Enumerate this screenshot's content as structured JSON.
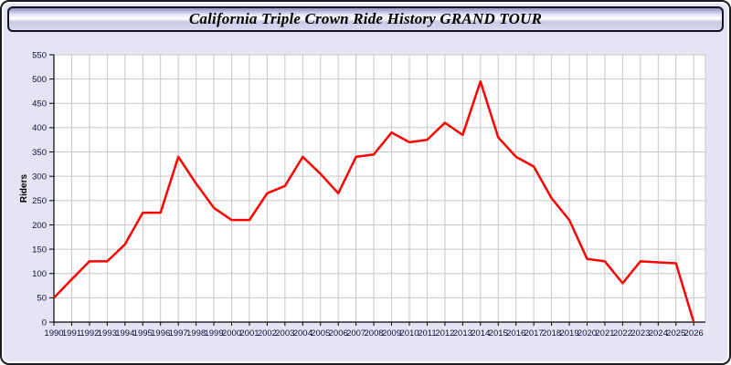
{
  "window": {
    "title": "California Triple Crown Ride History GRAND TOUR"
  },
  "colors": {
    "window_background": "#e4e4f4",
    "plot_background": "#ffffff",
    "grid": "#c6c6c6",
    "axis": "#000000",
    "tick_label": "#10103a",
    "line": "#ff0000"
  },
  "chart_data": {
    "type": "line",
    "title": "California Triple Crown Ride History GRAND TOUR",
    "xlabel": "",
    "ylabel": "Riders",
    "ylim": [
      0,
      550
    ],
    "ytick_step": 50,
    "grid": true,
    "legend_position": "none",
    "x": [
      1990,
      1991,
      1992,
      1993,
      1994,
      1995,
      1996,
      1997,
      1998,
      1999,
      2000,
      2001,
      2002,
      2003,
      2004,
      2005,
      2006,
      2007,
      2008,
      2009,
      2010,
      2011,
      2012,
      2013,
      2014,
      2015,
      2016,
      2017,
      2018,
      2019,
      2020,
      2021,
      2022,
      2023,
      2024,
      2025,
      2026
    ],
    "series": [
      {
        "name": "Riders",
        "color": "#ff0000",
        "values": [
          50,
          88,
          125,
          125,
          160,
          225,
          225,
          340,
          285,
          235,
          210,
          210,
          265,
          280,
          340,
          305,
          265,
          340,
          345,
          390,
          370,
          375,
          410,
          385,
          495,
          380,
          340,
          320,
          255,
          210,
          130,
          125,
          80,
          125,
          123,
          121,
          0
        ]
      }
    ]
  }
}
